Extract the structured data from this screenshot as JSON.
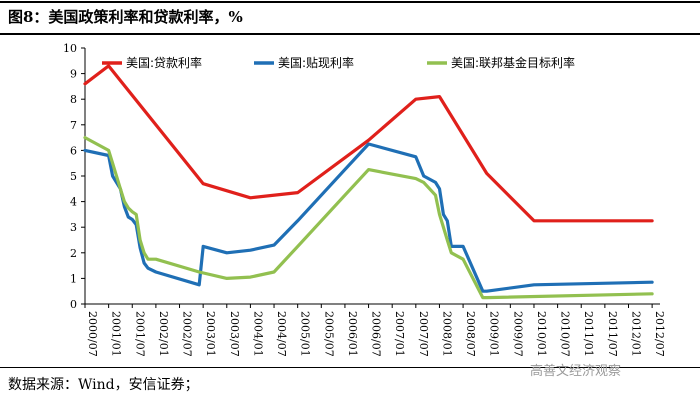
{
  "title": "图8：美国政策利率和贷款利率，%",
  "source": "数据来源：Wind，安信证券；",
  "watermark": "高善文经济观察",
  "chart_data": {
    "type": "line",
    "xlabel": "",
    "ylabel": "",
    "ylim": [
      0,
      10
    ],
    "yticks": [
      0,
      1,
      2,
      3,
      4,
      5,
      6,
      7,
      8,
      9,
      10
    ],
    "xticks": [
      "2000/07",
      "2001/01",
      "2001/07",
      "2002/01",
      "2002/07",
      "2003/01",
      "2003/07",
      "2004/01",
      "2004/07",
      "2005/01",
      "2005/07",
      "2006/01",
      "2006/07",
      "2007/01",
      "2007/07",
      "2008/01",
      "2008/07",
      "2009/01",
      "2009/07",
      "2010/01",
      "2010/07",
      "2011/01",
      "2011/07",
      "2012/01",
      "2012/07"
    ],
    "grid": false,
    "legend_position": "top",
    "series": [
      {
        "name": "美国:贷款利率",
        "color": "#e0201b",
        "points": [
          [
            "2000/07",
            8.6
          ],
          [
            "2001/01",
            9.3
          ],
          [
            "2003/01",
            4.7
          ],
          [
            "2004/01",
            4.15
          ],
          [
            "2005/01",
            4.35
          ],
          [
            "2006/07",
            6.4
          ],
          [
            "2007/07",
            8.0
          ],
          [
            "2008/01",
            8.1
          ],
          [
            "2009/01",
            5.1
          ],
          [
            "2010/01",
            3.25
          ],
          [
            "2012/07",
            3.25
          ]
        ]
      },
      {
        "name": "美国:贴现利率",
        "color": "#1f6fb5",
        "points": [
          [
            "2000/07",
            6.0
          ],
          [
            "2001/01",
            5.8
          ],
          [
            "2001/02",
            5.0
          ],
          [
            "2001/04",
            4.5
          ],
          [
            "2001/05",
            3.8
          ],
          [
            "2001/06",
            3.4
          ],
          [
            "2001/07",
            3.3
          ],
          [
            "2001/08",
            3.1
          ],
          [
            "2001/09",
            2.2
          ],
          [
            "2001/10",
            1.6
          ],
          [
            "2001/11",
            1.4
          ],
          [
            "2002/01",
            1.25
          ],
          [
            "2002/12",
            0.75
          ],
          [
            "2003/01",
            2.25
          ],
          [
            "2003/07",
            2.0
          ],
          [
            "2004/01",
            2.1
          ],
          [
            "2004/07",
            2.3
          ],
          [
            "2005/01",
            3.25
          ],
          [
            "2005/07",
            4.25
          ],
          [
            "2006/01",
            5.25
          ],
          [
            "2006/07",
            6.25
          ],
          [
            "2007/07",
            5.75
          ],
          [
            "2007/09",
            5.0
          ],
          [
            "2007/12",
            4.75
          ],
          [
            "2008/01",
            4.5
          ],
          [
            "2008/02",
            3.5
          ],
          [
            "2008/03",
            3.25
          ],
          [
            "2008/04",
            2.25
          ],
          [
            "2008/07",
            2.25
          ],
          [
            "2008/12",
            0.5
          ],
          [
            "2009/01",
            0.5
          ],
          [
            "2010/01",
            0.75
          ],
          [
            "2012/07",
            0.85
          ]
        ]
      },
      {
        "name": "美国:联邦基金目标利率",
        "color": "#92c050",
        "points": [
          [
            "2000/07",
            6.5
          ],
          [
            "2001/01",
            6.0
          ],
          [
            "2001/02",
            5.5
          ],
          [
            "2001/04",
            4.5
          ],
          [
            "2001/05",
            4.0
          ],
          [
            "2001/06",
            3.75
          ],
          [
            "2001/07",
            3.6
          ],
          [
            "2001/08",
            3.5
          ],
          [
            "2001/09",
            2.5
          ],
          [
            "2001/10",
            2.0
          ],
          [
            "2001/11",
            1.75
          ],
          [
            "2002/01",
            1.75
          ],
          [
            "2002/12",
            1.25
          ],
          [
            "2003/07",
            1.0
          ],
          [
            "2004/01",
            1.05
          ],
          [
            "2004/07",
            1.25
          ],
          [
            "2005/01",
            2.25
          ],
          [
            "2005/07",
            3.25
          ],
          [
            "2006/01",
            4.25
          ],
          [
            "2006/07",
            5.25
          ],
          [
            "2007/07",
            4.9
          ],
          [
            "2007/09",
            4.75
          ],
          [
            "2007/12",
            4.25
          ],
          [
            "2008/01",
            3.5
          ],
          [
            "2008/03",
            2.5
          ],
          [
            "2008/04",
            2.0
          ],
          [
            "2008/07",
            1.75
          ],
          [
            "2008/12",
            0.25
          ],
          [
            "2009/01",
            0.25
          ],
          [
            "2012/07",
            0.4
          ]
        ]
      }
    ]
  }
}
